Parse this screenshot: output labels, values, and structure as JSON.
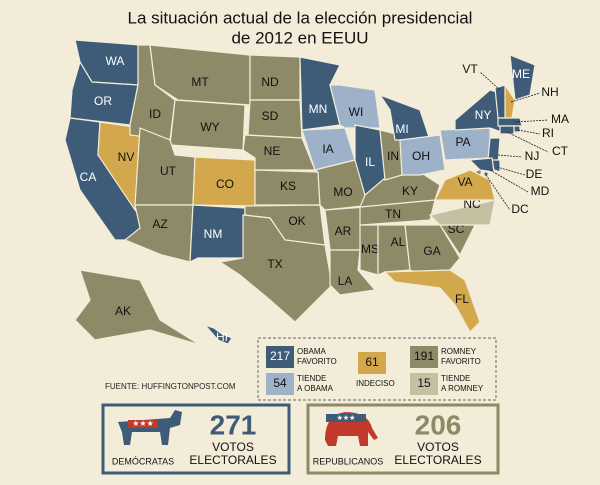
{
  "title": [
    "La situación actual de la elección presidencial",
    "de 2012 en EEUU"
  ],
  "states": [
    {
      "label": "WA",
      "color": "#3e5c78"
    },
    {
      "label": "OR",
      "color": "#3e5c78"
    },
    {
      "label": "CA",
      "color": "#3e5c78"
    },
    {
      "label": "NV",
      "color": "#d3a74b"
    },
    {
      "label": "ID",
      "color": "#8e8a68"
    },
    {
      "label": "MT",
      "color": "#8e8a68"
    },
    {
      "label": "WY",
      "color": "#8e8a68"
    },
    {
      "label": "UT",
      "color": "#8e8a68"
    },
    {
      "label": "AZ",
      "color": "#8e8a68"
    },
    {
      "label": "CO",
      "color": "#d3a74b"
    },
    {
      "label": "NM",
      "color": "#3e5c78"
    },
    {
      "label": "ND",
      "color": "#8e8a68"
    },
    {
      "label": "SD",
      "color": "#8e8a68"
    },
    {
      "label": "NE",
      "color": "#8e8a68"
    },
    {
      "label": "KS",
      "color": "#8e8a68"
    },
    {
      "label": "OK",
      "color": "#8e8a68"
    },
    {
      "label": "TX",
      "color": "#8e8a68"
    },
    {
      "label": "MN",
      "color": "#3e5c78"
    },
    {
      "label": "IA",
      "color": "#9db2c8"
    },
    {
      "label": "MO",
      "color": "#8e8a68"
    },
    {
      "label": "AR",
      "color": "#8e8a68"
    },
    {
      "label": "LA",
      "color": "#8e8a68"
    },
    {
      "label": "WI",
      "color": "#9db2c8"
    },
    {
      "label": "IL",
      "color": "#3e5c78"
    },
    {
      "label": "MS",
      "color": "#8e8a68"
    },
    {
      "label": "AL",
      "color": "#8e8a68"
    },
    {
      "label": "TN",
      "color": "#8e8a68"
    },
    {
      "label": "KY",
      "color": "#8e8a68"
    },
    {
      "label": "IN",
      "color": "#8e8a68"
    },
    {
      "label": "MI",
      "color": "#3e5c78"
    },
    {
      "label": "OH",
      "color": "#9db2c8"
    },
    {
      "label": "GA",
      "color": "#8e8a68"
    },
    {
      "label": "FL",
      "color": "#d3a74b"
    },
    {
      "label": "SC",
      "color": "#8e8a68"
    },
    {
      "label": "NC",
      "color": "#c4c1a3"
    },
    {
      "label": "VA",
      "color": "#d3a74b"
    },
    {
      "label": "PA",
      "color": "#9db2c8"
    },
    {
      "label": "NY",
      "color": "#3e5c78"
    },
    {
      "label": "NJ",
      "color": "#3e5c78"
    },
    {
      "label": "ME",
      "color": "#3e5c78"
    },
    {
      "label": "NH",
      "color": "#d3a74b"
    },
    {
      "label": "VT",
      "color": "#3e5c78"
    },
    {
      "label": "MA",
      "color": "#3e5c78"
    },
    {
      "label": "AK",
      "color": "#8e8a68"
    },
    {
      "label": "HI",
      "color": "#3e5c78"
    },
    {
      "label": "RI",
      "color": "#3e5c78"
    },
    {
      "label": "CT",
      "color": "#3e5c78"
    },
    {
      "label": "DE",
      "color": "#3e5c78"
    },
    {
      "label": "MD",
      "color": "#3e5c78"
    },
    {
      "label": "DC",
      "color": "#3e5c78"
    }
  ],
  "legend": [
    {
      "count": "217",
      "label": [
        "OBAMA",
        "FAVORITO"
      ],
      "color": "#3e5c78"
    },
    {
      "count": "54",
      "label": [
        "TIENDE",
        "A OBAMA"
      ],
      "color": "#9db2c8"
    },
    {
      "count": "61",
      "label": [
        "INDECISO"
      ],
      "color": "#d3a74b"
    },
    {
      "count": "191",
      "label": [
        "ROMNEY",
        "FAVORITO"
      ],
      "color": "#8e8a68"
    },
    {
      "count": "15",
      "label": [
        "TIENDE",
        "A ROMNEY"
      ],
      "color": "#c4c1a3"
    }
  ],
  "source": "FUENTE: HUFFINGTONPOST.COM",
  "parties": [
    {
      "name": "DEMÓCRATAS",
      "votes": "271",
      "votes_label": [
        "VOTOS",
        "ELECTORALES"
      ],
      "color": "#3e5c78"
    },
    {
      "name": "REPUBLICANOS",
      "votes": "206",
      "votes_label": [
        "VOTOS",
        "ELECTORALES"
      ],
      "color": "#8e8a68"
    }
  ]
}
